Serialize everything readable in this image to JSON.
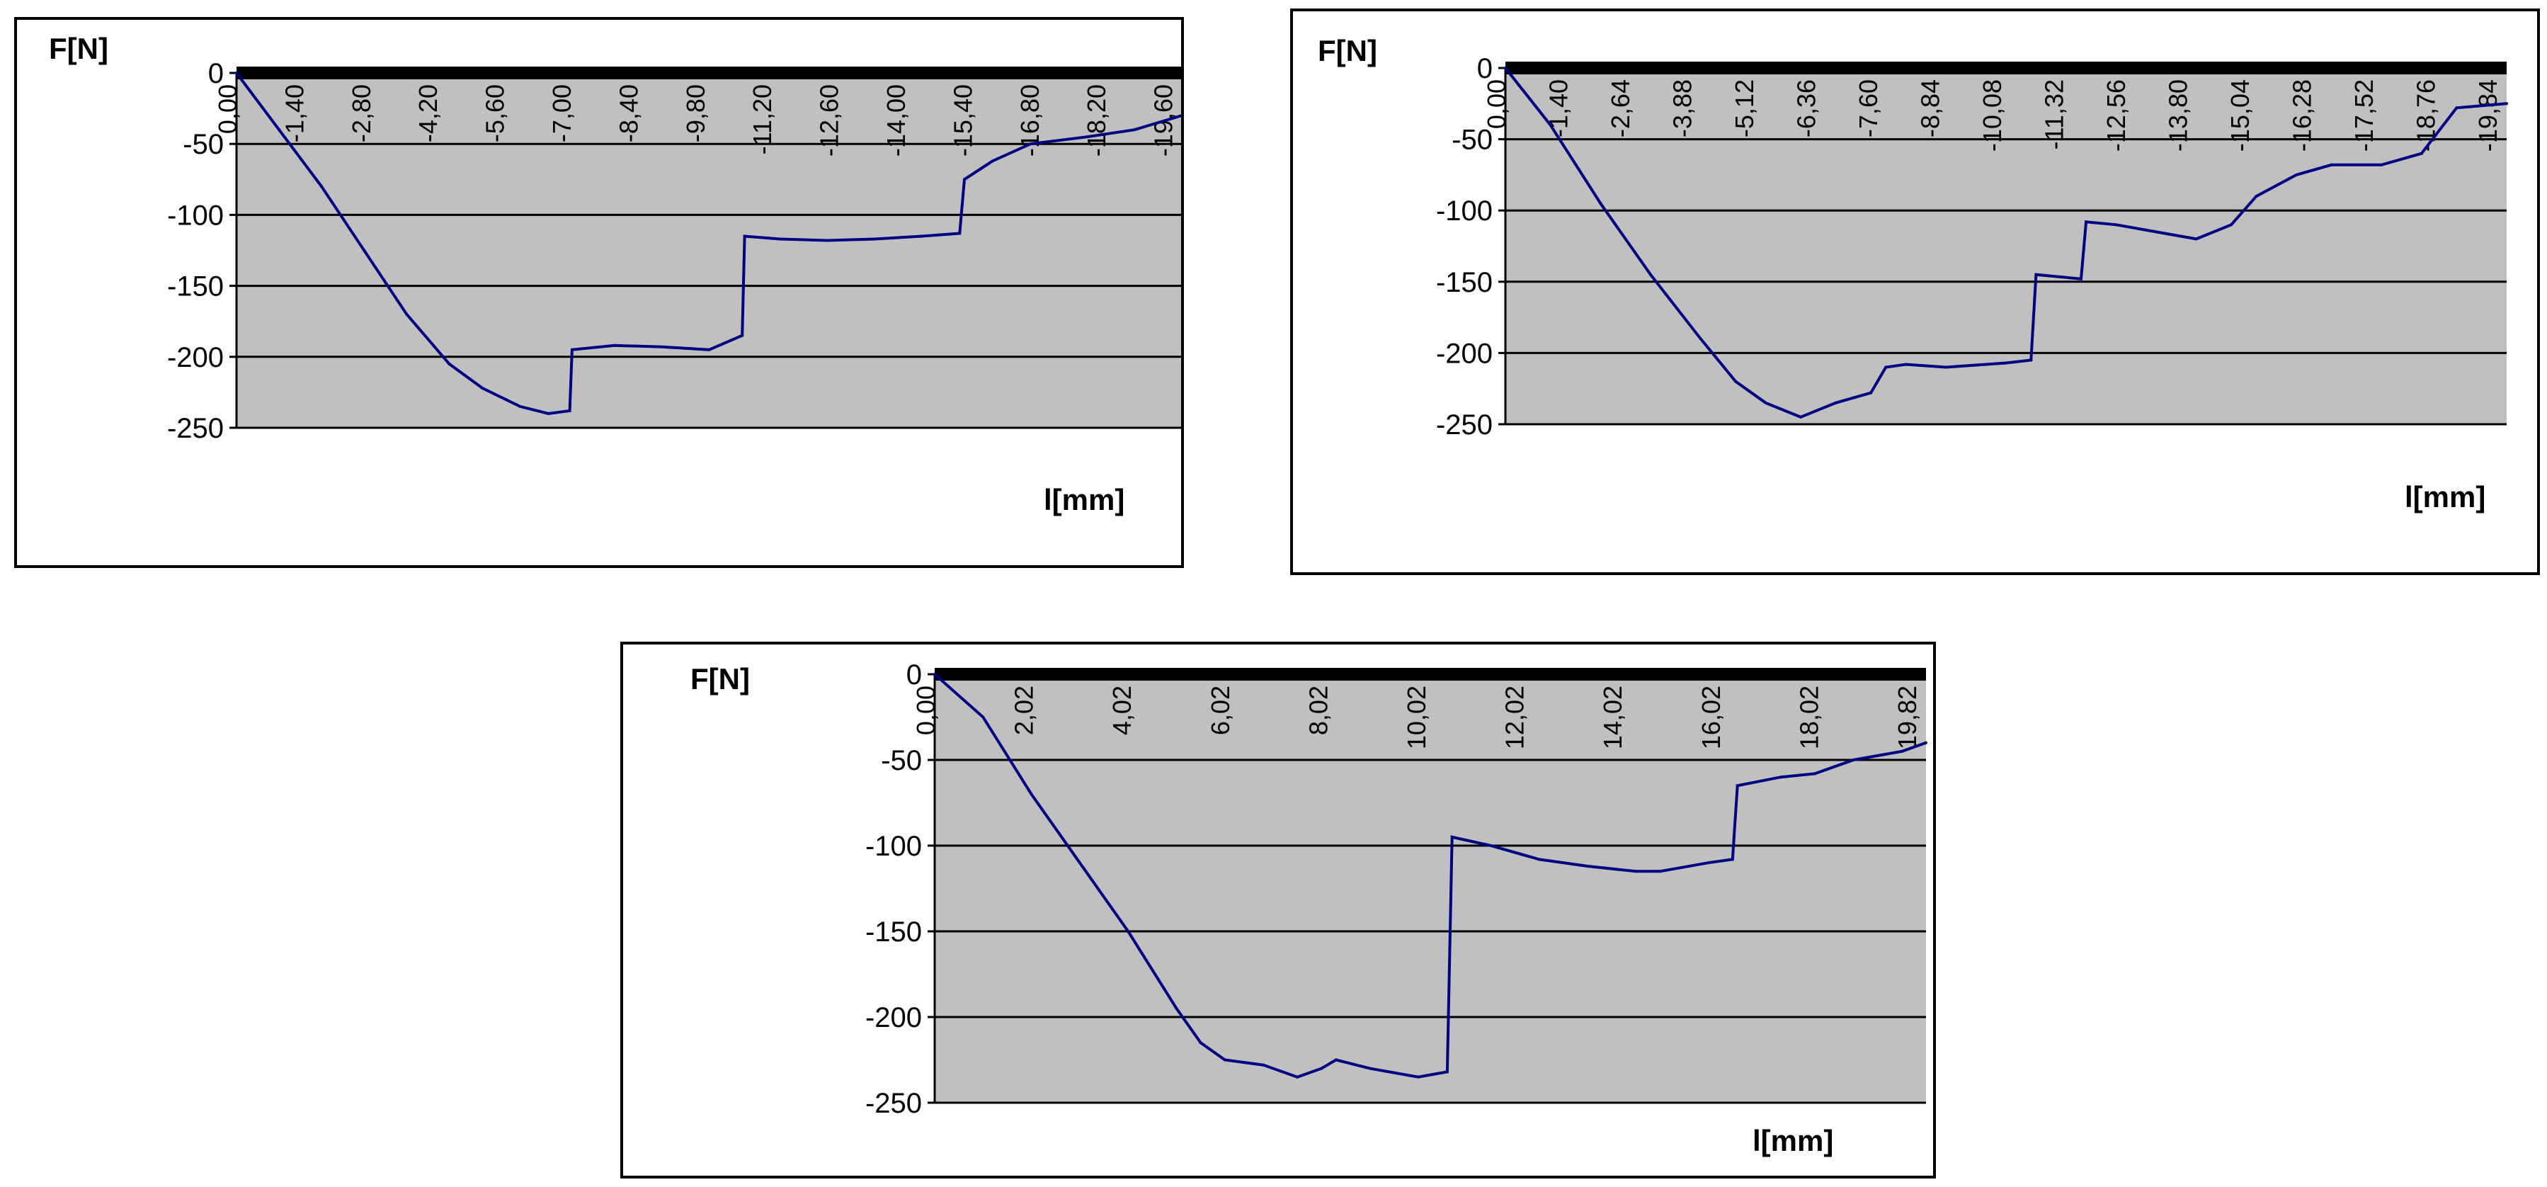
{
  "chart_data": [
    {
      "type": "line",
      "ylabel": "F[N]",
      "xlabel": "l[mm]",
      "ylim": [
        -250,
        0
      ],
      "yticks": [
        0,
        -50,
        -100,
        -150,
        -200,
        -250
      ],
      "xlim": [
        0,
        -20.0
      ],
      "xtick_labels": [
        "0,00",
        "-1,40",
        "-2,80",
        "-4,20",
        "-5,60",
        "-7,00",
        "-8,40",
        "-9,80",
        "-11,20",
        "-12,60",
        "-14,00",
        "-15,40",
        "-16,80",
        "-18,20",
        "-19,60"
      ],
      "grid": true,
      "colors": {
        "plot_bg": "#c0c0c0",
        "line": "#000080"
      },
      "series": [
        {
          "x": [
            0,
            -0.9,
            -1.8,
            -2.7,
            -3.6,
            -4.5,
            -5.2,
            -6.0,
            -6.6,
            -7.05,
            -7.1,
            -8.0,
            -9.0,
            -10.0,
            -10.7,
            -10.75,
            -11.5,
            -12.5,
            -13.5,
            -14.5,
            -15.3,
            -15.4,
            -16.0,
            -16.8,
            -18.0,
            -19.0,
            -20.0
          ],
          "y": [
            0,
            -40,
            -80,
            -125,
            -170,
            -205,
            -222,
            -235,
            -240,
            -238,
            -195,
            -192,
            -193,
            -195,
            -185,
            -115,
            -117,
            -118,
            -117,
            -115,
            -113,
            -75,
            -62,
            -50,
            -45,
            -40,
            -30
          ]
        }
      ]
    },
    {
      "type": "line",
      "ylabel": "F[N]",
      "xlabel": "l[mm]",
      "ylim": [
        -250,
        0
      ],
      "yticks": [
        0,
        -50,
        -100,
        -150,
        -200,
        -250
      ],
      "xlim": [
        0,
        -20.0
      ],
      "xtick_labels": [
        "0,00",
        "-1,40",
        "-2,64",
        "-3,88",
        "-5,12",
        "-6,36",
        "-7,60",
        "-8,84",
        "-10,08",
        "-11,32",
        "-12,56",
        "-13,80",
        "-15,04",
        "-16,28",
        "-17,52",
        "-18,76",
        "-19,84"
      ],
      "grid": true,
      "colors": {
        "plot_bg": "#c0c0c0",
        "line": "#000080"
      },
      "series": [
        {
          "x": [
            0,
            -0.9,
            -1.9,
            -2.9,
            -3.9,
            -4.6,
            -5.2,
            -5.9,
            -6.6,
            -7.3,
            -7.6,
            -8.0,
            -8.8,
            -10.0,
            -10.5,
            -10.6,
            -11.5,
            -11.6,
            -12.2,
            -13.0,
            -13.8,
            -14.5,
            -15.0,
            -15.8,
            -16.5,
            -17.5,
            -18.3,
            -19.0,
            -20.0
          ],
          "y": [
            0,
            -40,
            -95,
            -145,
            -190,
            -220,
            -235,
            -245,
            -235,
            -228,
            -210,
            -208,
            -210,
            -207,
            -205,
            -145,
            -148,
            -108,
            -110,
            -115,
            -120,
            -110,
            -90,
            -75,
            -68,
            -68,
            -60,
            -28,
            -25
          ]
        }
      ]
    },
    {
      "type": "line",
      "ylabel": "F[N]",
      "xlabel": "l[mm]",
      "ylim": [
        -250,
        0
      ],
      "yticks": [
        0,
        -50,
        -100,
        -150,
        -200,
        -250
      ],
      "xlim": [
        0,
        20.5
      ],
      "xtick_labels": [
        "0,00",
        "2,02",
        "4,02",
        "6,02",
        "8,02",
        "10,02",
        "12,02",
        "14,02",
        "16,02",
        "18,02",
        "19,82"
      ],
      "grid": true,
      "colors": {
        "plot_bg": "#c0c0c0",
        "line": "#000080"
      },
      "series": [
        {
          "x": [
            0,
            1.0,
            2.0,
            3.0,
            4.0,
            5.0,
            5.5,
            6.0,
            6.8,
            7.5,
            8.0,
            8.3,
            9.0,
            10.0,
            10.6,
            10.7,
            11.5,
            12.5,
            13.5,
            14.5,
            15.0,
            16.0,
            16.5,
            16.6,
            17.5,
            18.2,
            19.0,
            20.0,
            20.5
          ],
          "y": [
            0,
            -25,
            -70,
            -110,
            -150,
            -195,
            -215,
            -225,
            -228,
            -235,
            -230,
            -225,
            -230,
            -235,
            -232,
            -95,
            -100,
            -108,
            -112,
            -115,
            -115,
            -110,
            -108,
            -65,
            -60,
            -58,
            -50,
            -45,
            -40
          ]
        }
      ]
    }
  ]
}
